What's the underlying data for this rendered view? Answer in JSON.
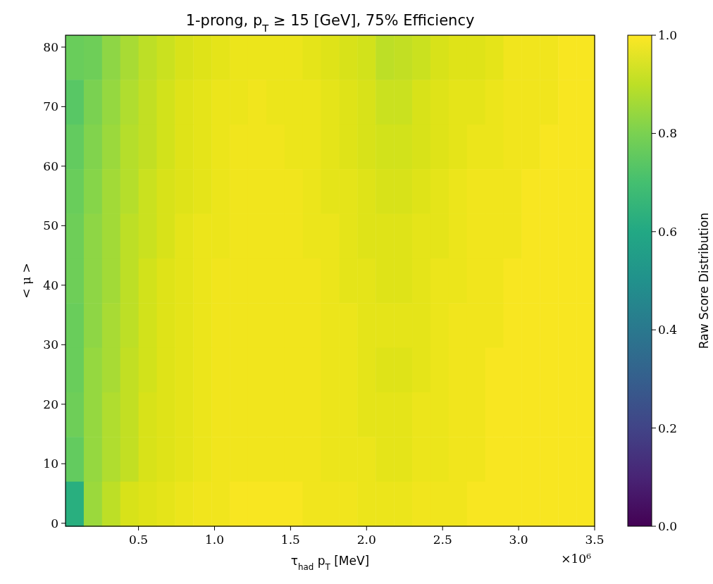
{
  "chart_data": {
    "type": "heatmap",
    "title": "1-prong, p$_{T}$ ≥ 15 [GeV], 75% Efficiency",
    "xlabel": "τ$_{had}$ p$_{T}$ [MeV]",
    "ylabel": "< μ >",
    "clabel": "Raw Score Distribution",
    "annotations": [
      "×10⁶"
    ],
    "x": [
      0.08,
      0.2,
      0.32,
      0.44,
      0.56,
      0.68,
      0.8,
      0.92,
      1.04,
      1.16,
      1.28,
      1.4,
      1.52,
      1.64,
      1.76,
      1.88,
      2,
      2.12,
      2.24,
      2.36,
      2.48,
      2.6,
      2.72,
      2.84,
      2.96,
      3.08,
      3.2,
      3.32,
      3.44
    ],
    "y": [
      78.25,
      70.75,
      63.25,
      55.75,
      48.25,
      40.75,
      33.25,
      25.75,
      18.25,
      10.75,
      3.25
    ],
    "xlim": [
      0.02,
      3.5
    ],
    "xticks": [
      0.5,
      {
        "value": 1,
        "label": "1.0"
      },
      1.5,
      {
        "value": 2,
        "label": "2.0"
      },
      2.5,
      {
        "value": 3,
        "label": "3.0"
      },
      3.5
    ],
    "ylim": [
      -0.5,
      82
    ],
    "yticks": [
      0,
      10,
      20,
      30,
      40,
      50,
      60,
      70,
      80
    ],
    "clim": [
      0,
      1
    ],
    "cticks": [
      {
        "value": 0,
        "label": "0.0"
      },
      {
        "value": 0.2,
        "label": "0.2"
      },
      {
        "value": 0.4,
        "label": "0.4"
      },
      {
        "value": 0.6,
        "label": "0.6"
      },
      {
        "value": 0.8,
        "label": "0.8"
      },
      {
        "value": 1,
        "label": "1.0"
      }
    ],
    "cells": [
      [
        0.77,
        0.78,
        0.83,
        0.87,
        0.9,
        0.92,
        0.94,
        0.95,
        0.96,
        0.97,
        0.97,
        0.97,
        0.97,
        0.96,
        0.95,
        0.94,
        0.93,
        0.9,
        0.91,
        0.92,
        0.94,
        0.95,
        0.95,
        0.96,
        0.98,
        0.98,
        0.98,
        0.99,
        0.99
      ],
      [
        0.74,
        0.8,
        0.84,
        0.88,
        0.91,
        0.93,
        0.95,
        0.96,
        0.97,
        0.97,
        0.98,
        0.97,
        0.97,
        0.97,
        0.96,
        0.95,
        0.94,
        0.92,
        0.92,
        0.94,
        0.95,
        0.96,
        0.96,
        0.97,
        0.98,
        0.98,
        0.98,
        0.99,
        0.99
      ],
      [
        0.76,
        0.81,
        0.85,
        0.89,
        0.91,
        0.93,
        0.95,
        0.96,
        0.97,
        0.98,
        0.98,
        0.98,
        0.97,
        0.97,
        0.96,
        0.95,
        0.94,
        0.93,
        0.93,
        0.94,
        0.95,
        0.96,
        0.97,
        0.97,
        0.98,
        0.98,
        0.99,
        0.99,
        0.99
      ],
      [
        0.77,
        0.82,
        0.86,
        0.89,
        0.92,
        0.94,
        0.95,
        0.96,
        0.97,
        0.98,
        0.98,
        0.98,
        0.98,
        0.97,
        0.96,
        0.96,
        0.95,
        0.94,
        0.94,
        0.95,
        0.96,
        0.97,
        0.98,
        0.98,
        0.98,
        0.99,
        0.99,
        0.99,
        0.99
      ],
      [
        0.78,
        0.83,
        0.86,
        0.9,
        0.92,
        0.94,
        0.96,
        0.97,
        0.97,
        0.98,
        0.98,
        0.98,
        0.98,
        0.97,
        0.97,
        0.96,
        0.95,
        0.95,
        0.95,
        0.96,
        0.96,
        0.97,
        0.98,
        0.98,
        0.98,
        0.99,
        0.99,
        0.99,
        0.99
      ],
      [
        0.78,
        0.83,
        0.86,
        0.9,
        0.93,
        0.95,
        0.96,
        0.97,
        0.98,
        0.98,
        0.98,
        0.98,
        0.98,
        0.98,
        0.97,
        0.96,
        0.96,
        0.95,
        0.95,
        0.96,
        0.97,
        0.97,
        0.98,
        0.98,
        0.99,
        0.99,
        0.99,
        0.99,
        0.99
      ],
      [
        0.77,
        0.83,
        0.87,
        0.9,
        0.93,
        0.95,
        0.96,
        0.97,
        0.98,
        0.98,
        0.98,
        0.98,
        0.98,
        0.98,
        0.97,
        0.97,
        0.96,
        0.96,
        0.96,
        0.96,
        0.97,
        0.98,
        0.98,
        0.98,
        0.99,
        0.99,
        0.99,
        0.99,
        0.99
      ],
      [
        0.77,
        0.84,
        0.87,
        0.91,
        0.93,
        0.95,
        0.96,
        0.97,
        0.98,
        0.98,
        0.98,
        0.98,
        0.98,
        0.98,
        0.97,
        0.97,
        0.96,
        0.95,
        0.95,
        0.96,
        0.97,
        0.98,
        0.98,
        0.99,
        0.99,
        0.99,
        0.99,
        0.99,
        0.99
      ],
      [
        0.78,
        0.84,
        0.88,
        0.91,
        0.94,
        0.95,
        0.96,
        0.97,
        0.98,
        0.98,
        0.98,
        0.98,
        0.98,
        0.98,
        0.97,
        0.97,
        0.96,
        0.96,
        0.96,
        0.97,
        0.97,
        0.98,
        0.98,
        0.99,
        0.99,
        0.99,
        0.99,
        0.99,
        0.99
      ],
      [
        0.76,
        0.84,
        0.88,
        0.91,
        0.94,
        0.95,
        0.96,
        0.97,
        0.98,
        0.98,
        0.98,
        0.98,
        0.98,
        0.98,
        0.97,
        0.97,
        0.97,
        0.96,
        0.96,
        0.97,
        0.97,
        0.98,
        0.98,
        0.99,
        0.99,
        0.99,
        0.99,
        0.99,
        0.99
      ],
      [
        0.63,
        0.85,
        0.9,
        0.94,
        0.95,
        0.96,
        0.97,
        0.98,
        0.98,
        0.99,
        0.99,
        0.99,
        0.99,
        0.98,
        0.98,
        0.98,
        0.97,
        0.97,
        0.97,
        0.98,
        0.98,
        0.98,
        0.99,
        0.99,
        0.99,
        0.99,
        0.99,
        0.99,
        0.99
      ]
    ]
  }
}
